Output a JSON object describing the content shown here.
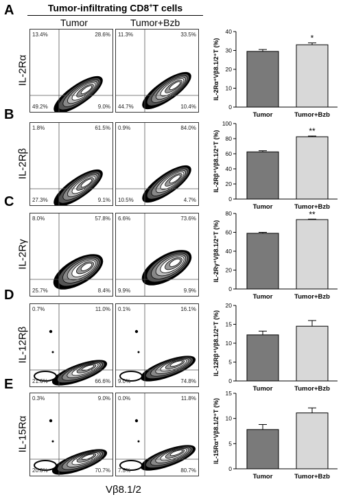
{
  "header": {
    "title": "Tumor-infiltrating CD8",
    "title_sup": "+",
    "title_suffix": "T cells",
    "col1": "Tumor",
    "col2": "Tumor+Bzb"
  },
  "x_axis_label": "Vβ8.1/2",
  "panels": [
    {
      "letter": "A",
      "marker": "IL-2Rα",
      "tumor": {
        "ul": "13.4%",
        "ur": "28.6%",
        "ll": "49.2%",
        "lr": "9.0%"
      },
      "bzb": {
        "ul": "11.3%",
        "ur": "33.5%",
        "ll": "44.7%",
        "lr": "10.4%"
      }
    },
    {
      "letter": "B",
      "marker": "IL-2Rβ",
      "tumor": {
        "ul": "1.8%",
        "ur": "61.5%",
        "ll": "27.3%",
        "lr": "9.1%"
      },
      "bzb": {
        "ul": "0.9%",
        "ur": "84.0%",
        "ll": "10.5%",
        "lr": "4.7%"
      }
    },
    {
      "letter": "C",
      "marker": "IL-2Rγ",
      "tumor": {
        "ul": "8.0%",
        "ur": "57.8%",
        "ll": "25.7%",
        "lr": "8.4%"
      },
      "bzb": {
        "ul": "6.6%",
        "ur": "73.6%",
        "ll": "9.9%",
        "lr": "9.9%"
      }
    },
    {
      "letter": "D",
      "marker": "IL-12Rβ",
      "tumor": {
        "ul": "0.7%",
        "ur": "11.0%",
        "ll": "21.6%",
        "lr": "66.6%"
      },
      "bzb": {
        "ul": "0.1%",
        "ur": "16.1%",
        "ll": "9.0%",
        "lr": "74.8%"
      }
    },
    {
      "letter": "E",
      "marker": "IL-15Rα",
      "tumor": {
        "ul": "0.3%",
        "ur": "9.0%",
        "ll": "20.0%",
        "lr": "70.7%"
      },
      "bzb": {
        "ul": "0.0%",
        "ur": "11.8%",
        "ll": "7.5%",
        "lr": "80.7%"
      }
    }
  ],
  "chart_data": [
    {
      "type": "bar",
      "categories": [
        "Tumor",
        "Tumor+Bzb"
      ],
      "values": [
        29.5,
        33.0
      ],
      "errors": [
        1.0,
        1.0
      ],
      "ylabel": "IL-2Rα⁺Vβ8.1/2⁺T (%)",
      "ylim": [
        0,
        40
      ],
      "yticks": [
        0,
        10,
        20,
        30,
        40
      ],
      "significance": [
        "",
        "*"
      ],
      "colors": [
        "#7a7a7a",
        "#d8d8d8"
      ]
    },
    {
      "type": "bar",
      "categories": [
        "Tumor",
        "Tumor+Bzb"
      ],
      "values": [
        62.5,
        82.5
      ],
      "errors": [
        1.5,
        1.0
      ],
      "ylabel": "IL-2Rβ⁺Vβ8.1/2⁺T (%)",
      "ylim": [
        0,
        100
      ],
      "yticks": [
        0,
        20,
        40,
        60,
        80,
        100
      ],
      "significance": [
        "",
        "**"
      ],
      "colors": [
        "#7a7a7a",
        "#d8d8d8"
      ]
    },
    {
      "type": "bar",
      "categories": [
        "Tumor",
        "Tumor+Bzb"
      ],
      "values": [
        59.0,
        73.5
      ],
      "errors": [
        1.0,
        0.5
      ],
      "ylabel": "IL-2Rγ⁺Vβ8.1/2⁺T (%)",
      "ylim": [
        0,
        80
      ],
      "yticks": [
        0,
        20,
        40,
        60,
        80
      ],
      "significance": [
        "",
        "**"
      ],
      "colors": [
        "#7a7a7a",
        "#d8d8d8"
      ]
    },
    {
      "type": "bar",
      "categories": [
        "Tumor",
        "Tumor+Bzb"
      ],
      "values": [
        12.2,
        14.5
      ],
      "errors": [
        1.0,
        1.5
      ],
      "ylabel": "IL-12Rβ⁺Vβ8.1/2⁺T (%)",
      "ylim": [
        0,
        20
      ],
      "yticks": [
        0,
        5,
        10,
        15,
        20
      ],
      "significance": [
        "",
        ""
      ],
      "colors": [
        "#7a7a7a",
        "#d8d8d8"
      ]
    },
    {
      "type": "bar",
      "categories": [
        "Tumor",
        "Tumor+Bzb"
      ],
      "values": [
        7.8,
        11.1
      ],
      "errors": [
        1.0,
        1.0
      ],
      "ylabel": "IL-15Rα⁺Vβ8.1/2⁺T (%)",
      "ylim": [
        0,
        15
      ],
      "yticks": [
        0,
        5,
        10,
        15
      ],
      "significance": [
        "",
        ""
      ],
      "colors": [
        "#7a7a7a",
        "#d8d8d8"
      ]
    }
  ]
}
